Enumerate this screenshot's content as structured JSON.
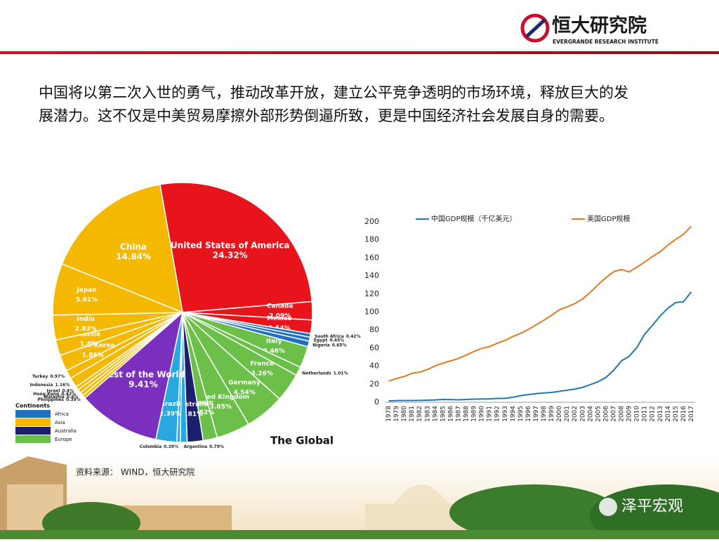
{
  "header": {
    "logo_text": "恒大研究院",
    "logo_subtext": "EVERGRANDE RESEARCH INSTITUTE"
  },
  "body": {
    "lines": [
      "中国将以第二次入世的勇气，推动改革开放，建立公平竞争透明的市场环境，释放巨大的发",
      "展潜力。这不仅是中美贸易摩擦外部形势倒逼所致，更是中国经济社会发展自身的需要。"
    ]
  },
  "chart_data": [
    {
      "type": "voronoi",
      "title": "The Global",
      "categories": [
        "United States of America",
        "Canada",
        "Mexico",
        "South Africa",
        "Egypt",
        "Nigeria",
        "Italy",
        "Netherlands",
        "France",
        "Germany",
        "United Kingdom",
        "Spain",
        "Australia",
        "Argentina",
        "Colombia",
        "Brazil",
        "Rest of the World",
        "Philippines",
        "Malaysia",
        "Hong Kong",
        "Israel",
        "Indonesia",
        "Turkey",
        "South Korea",
        "Russia",
        "India",
        "Japan",
        "China"
      ],
      "values": [
        24.32,
        2.09,
        1.54,
        0.42,
        0.45,
        0.65,
        2.46,
        1.01,
        3.26,
        4.54,
        3.85,
        1.62,
        1.81,
        0.79,
        0.39,
        2.39,
        9.41,
        0.39,
        0.4,
        0.42,
        0.4,
        1.16,
        0.97,
        1.86,
        1.8,
        2.83,
        5.91,
        14.84
      ],
      "value_labels": [
        "24.32%",
        "2.09%",
        "1.54%",
        "0.42%",
        "0.45%",
        "0.65%",
        "2.46%",
        "1.01%",
        "3.26%",
        "4.54%",
        "3.85%",
        "1.62%",
        "1.81%",
        "0.79%",
        "0.39%",
        "2.39%",
        "9.41%",
        "0.39%",
        "0.4%",
        "0.42%",
        "0.4%",
        "1.16%",
        "0.97%",
        "1.86%",
        "1.8%",
        "2.83%",
        "5.91%",
        "14.84%"
      ],
      "colors": [
        "#e8141b",
        "#e8141b",
        "#e8141b",
        "#1f6fc5",
        "#1f6fc5",
        "#1f6fc5",
        "#6cc04a",
        "#6cc04a",
        "#6cc04a",
        "#6cc04a",
        "#6cc04a",
        "#6cc04a",
        "#1b1f6e",
        "#29a8e0",
        "#29a8e0",
        "#29a8e0",
        "#7b2fbe",
        "#f5b800",
        "#f5b800",
        "#f5b800",
        "#f5b800",
        "#f5b800",
        "#f5b800",
        "#f5b800",
        "#f5b800",
        "#f5b800",
        "#f5b800",
        "#f5b800"
      ],
      "legend_title": "Continents",
      "legend": [
        {
          "name": "Africa",
          "color": "#1f6fc5"
        },
        {
          "name": "Asia",
          "color": "#f5b800"
        },
        {
          "name": "Australia",
          "color": "#1b1f6e"
        },
        {
          "name": "Europe",
          "color": "#6cc04a"
        }
      ]
    },
    {
      "type": "line",
      "categories": [
        "1978",
        "1979",
        "1980",
        "1981",
        "1982",
        "1983",
        "1984",
        "1985",
        "1986",
        "1987",
        "1988",
        "1989",
        "1990",
        "1991",
        "1992",
        "1993",
        "1994",
        "1995",
        "1996",
        "1997",
        "1998",
        "1999",
        "2000",
        "2001",
        "2002",
        "2003",
        "2004",
        "2005",
        "2006",
        "2007",
        "2008",
        "2009",
        "2010",
        "2011",
        "2012",
        "2013",
        "2014",
        "2015",
        "2016",
        "2017"
      ],
      "series": [
        {
          "name": "中国GDP规模（千亿美元）",
          "color": "#1f77b4",
          "values": [
            1.5,
            1.8,
            1.9,
            1.95,
            2.05,
            2.3,
            2.6,
            3.1,
            3.0,
            2.7,
            3.1,
            3.5,
            3.6,
            3.8,
            4.3,
            4.4,
            5.6,
            7.3,
            8.6,
            9.6,
            10.3,
            10.9,
            12.1,
            13.4,
            14.7,
            16.6,
            19.6,
            22.9,
            27.5,
            35.5,
            45.9,
            51.0,
            60.9,
            75.5,
            85.3,
            95.7,
            104.4,
            110.6,
            111.4,
            122.4
          ]
        },
        {
          "name": "美国GDP规模",
          "color": "#e07b24",
          "values": [
            23.5,
            26.3,
            28.6,
            32.1,
            33.4,
            36.3,
            40.4,
            43.4,
            45.9,
            48.5,
            52.4,
            56.4,
            59.8,
            61.7,
            65.4,
            68.6,
            72.9,
            76.4,
            80.7,
            85.8,
            90.9,
            96.4,
            102.5,
            105.8,
            109.4,
            114.6,
            122.1,
            130.4,
            138.1,
            144.8,
            147.1,
            144.5,
            149.9,
            155.4,
            161.6,
            166.9,
            174.3,
            180.6,
            186.2,
            194.9
          ]
        }
      ],
      "ylim": [
        0,
        200
      ],
      "yticks": [
        0,
        20,
        40,
        60,
        80,
        100,
        120,
        140,
        160,
        180,
        200
      ],
      "grid": false
    }
  ],
  "source": "资料来源： WIND，恒大研究院",
  "watermark": "泽平宏观"
}
